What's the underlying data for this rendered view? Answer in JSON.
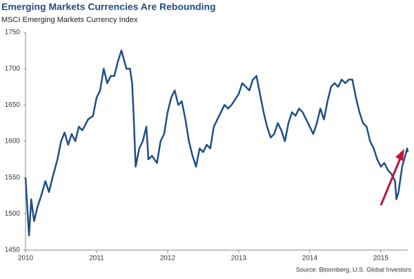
{
  "chart_data": {
    "type": "line",
    "title": "Emerging Markets Currencies Are Rebounding",
    "subtitle": "MSCI Emerging Markets Currency Index",
    "source": "Source: Bloomberg, U.S. Global Investors",
    "color": "#1f4e85",
    "x": [
      2010.0,
      2010.03,
      2010.05,
      2010.08,
      2010.12,
      2010.17,
      2010.22,
      2010.28,
      2010.33,
      2010.38,
      2010.45,
      2010.5,
      2010.55,
      2010.6,
      2010.65,
      2010.7,
      2010.75,
      2010.8,
      2010.88,
      2010.95,
      2011.0,
      2011.05,
      2011.1,
      2011.15,
      2011.2,
      2011.25,
      2011.3,
      2011.35,
      2011.42,
      2011.47,
      2011.5,
      2011.52,
      2011.55,
      2011.6,
      2011.65,
      2011.7,
      2011.73,
      2011.78,
      2011.85,
      2011.9,
      2011.95,
      2012.0,
      2012.05,
      2012.1,
      2012.15,
      2012.2,
      2012.25,
      2012.3,
      2012.35,
      2012.4,
      2012.45,
      2012.5,
      2012.55,
      2012.6,
      2012.65,
      2012.7,
      2012.75,
      2012.8,
      2012.85,
      2012.9,
      2013.0,
      2013.05,
      2013.1,
      2013.15,
      2013.2,
      2013.25,
      2013.3,
      2013.35,
      2013.4,
      2013.45,
      2013.5,
      2013.55,
      2013.6,
      2013.65,
      2013.7,
      2013.75,
      2013.8,
      2013.85,
      2013.9,
      2014.0,
      2014.05,
      2014.1,
      2014.15,
      2014.2,
      2014.25,
      2014.3,
      2014.35,
      2014.4,
      2014.45,
      2014.5,
      2014.55,
      2014.6,
      2014.65,
      2014.7,
      2014.75,
      2014.8,
      2014.85,
      2014.9,
      2014.95,
      2015.0,
      2015.05,
      2015.1,
      2015.15,
      2015.2,
      2015.22,
      2015.25,
      2015.3,
      2015.33,
      2015.37,
      2015.38
    ],
    "series": [
      {
        "name": "MSCI Emerging Markets Currency Index",
        "color": "#1f4e85",
        "values": [
          1550,
          1500,
          1470,
          1520,
          1490,
          1510,
          1525,
          1545,
          1530,
          1550,
          1575,
          1600,
          1612,
          1595,
          1610,
          1600,
          1620,
          1615,
          1630,
          1635,
          1660,
          1670,
          1700,
          1680,
          1690,
          1690,
          1710,
          1725,
          1700,
          1700,
          1680,
          1640,
          1565,
          1590,
          1600,
          1620,
          1575,
          1580,
          1570,
          1600,
          1610,
          1640,
          1660,
          1670,
          1650,
          1655,
          1630,
          1600,
          1580,
          1565,
          1590,
          1585,
          1595,
          1590,
          1620,
          1630,
          1640,
          1650,
          1645,
          1650,
          1665,
          1680,
          1675,
          1670,
          1685,
          1690,
          1665,
          1640,
          1620,
          1605,
          1610,
          1625,
          1615,
          1600,
          1625,
          1640,
          1635,
          1645,
          1640,
          1620,
          1610,
          1625,
          1645,
          1630,
          1655,
          1675,
          1680,
          1675,
          1685,
          1680,
          1685,
          1685,
          1660,
          1640,
          1625,
          1620,
          1600,
          1590,
          1575,
          1565,
          1570,
          1560,
          1555,
          1545,
          1520,
          1530,
          1565,
          1575,
          1590,
          1585
        ]
      }
    ],
    "xlim": [
      2010,
      2015.38
    ],
    "xticks": [
      2010,
      2011,
      2012,
      2013,
      2014,
      2015
    ],
    "ylim": [
      1450,
      1750
    ],
    "yticks": [
      1450,
      1500,
      1550,
      1600,
      1650,
      1700,
      1750
    ]
  }
}
